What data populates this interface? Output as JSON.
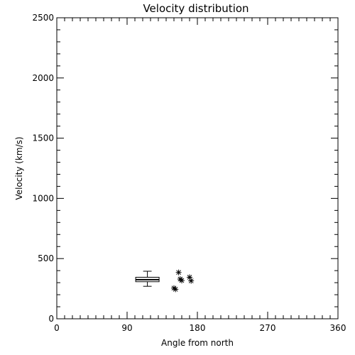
{
  "chart_data": {
    "type": "scatter",
    "title": "Velocity distribution",
    "xlabel": "Angle from north",
    "ylabel": "Velocity (km/s)",
    "xlim": [
      0,
      360
    ],
    "ylim": [
      0,
      2500
    ],
    "xticks": [
      0,
      90,
      180,
      270,
      360
    ],
    "xtick_labels": [
      "0",
      "90",
      "180",
      "270",
      "360"
    ],
    "yticks": [
      0,
      500,
      1000,
      1500,
      2000,
      2500
    ],
    "ytick_labels": [
      "0",
      "500",
      "1000",
      "1500",
      "2000",
      "2500"
    ],
    "grid": false,
    "box": {
      "x_center": 116,
      "x_width": 30,
      "whisker_low": 270,
      "q1": 308,
      "median": 325,
      "q3": 345,
      "whisker_high": 395
    },
    "points": [
      {
        "x": 156,
        "y": 385
      },
      {
        "x": 158,
        "y": 330
      },
      {
        "x": 160,
        "y": 318
      },
      {
        "x": 150,
        "y": 255
      },
      {
        "x": 152,
        "y": 245
      },
      {
        "x": 170,
        "y": 345
      },
      {
        "x": 172,
        "y": 315
      }
    ]
  }
}
